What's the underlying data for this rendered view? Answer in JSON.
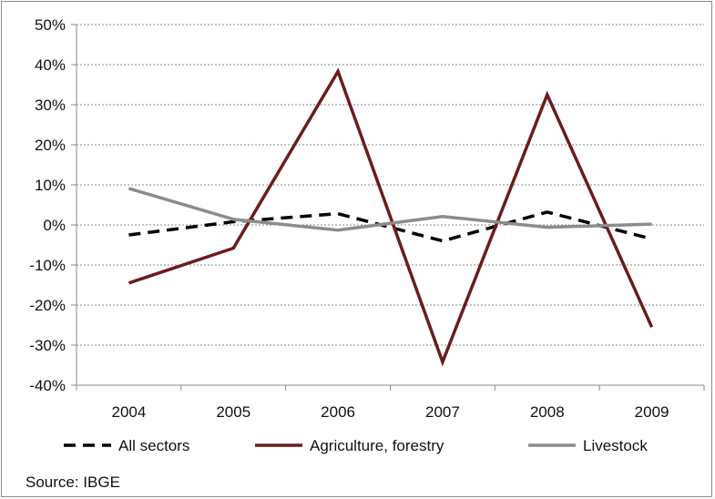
{
  "chart_data": {
    "type": "line",
    "x": [
      "2004",
      "2005",
      "2006",
      "2007",
      "2008",
      "2009"
    ],
    "ylim": [
      -40,
      50
    ],
    "yticks": [
      50,
      40,
      30,
      20,
      10,
      0,
      -10,
      -20,
      -30,
      -40
    ],
    "ytick_labels": [
      "50%",
      "40%",
      "30%",
      "20%",
      "10%",
      "0%",
      "-10%",
      "-20%",
      "-30%",
      "-40%"
    ],
    "grid": "horizontal dashed",
    "legend_position": "bottom",
    "series": [
      {
        "name": "All sectors",
        "color": "#000000",
        "style": "dashed",
        "values": [
          -2.5,
          0.8,
          2.8,
          -4.0,
          3.2,
          -3.5
        ]
      },
      {
        "name": "Agriculture, forestry",
        "color": "#6b1c1c",
        "style": "solid",
        "values": [
          -14.5,
          -5.8,
          38.3,
          -34.2,
          32.5,
          -25.5
        ]
      },
      {
        "name": "Livestock",
        "color": "#8c8c8c",
        "style": "solid",
        "values": [
          9.1,
          1.4,
          -1.3,
          2.1,
          -0.6,
          0.2
        ]
      }
    ]
  },
  "source": "Source: IBGE"
}
